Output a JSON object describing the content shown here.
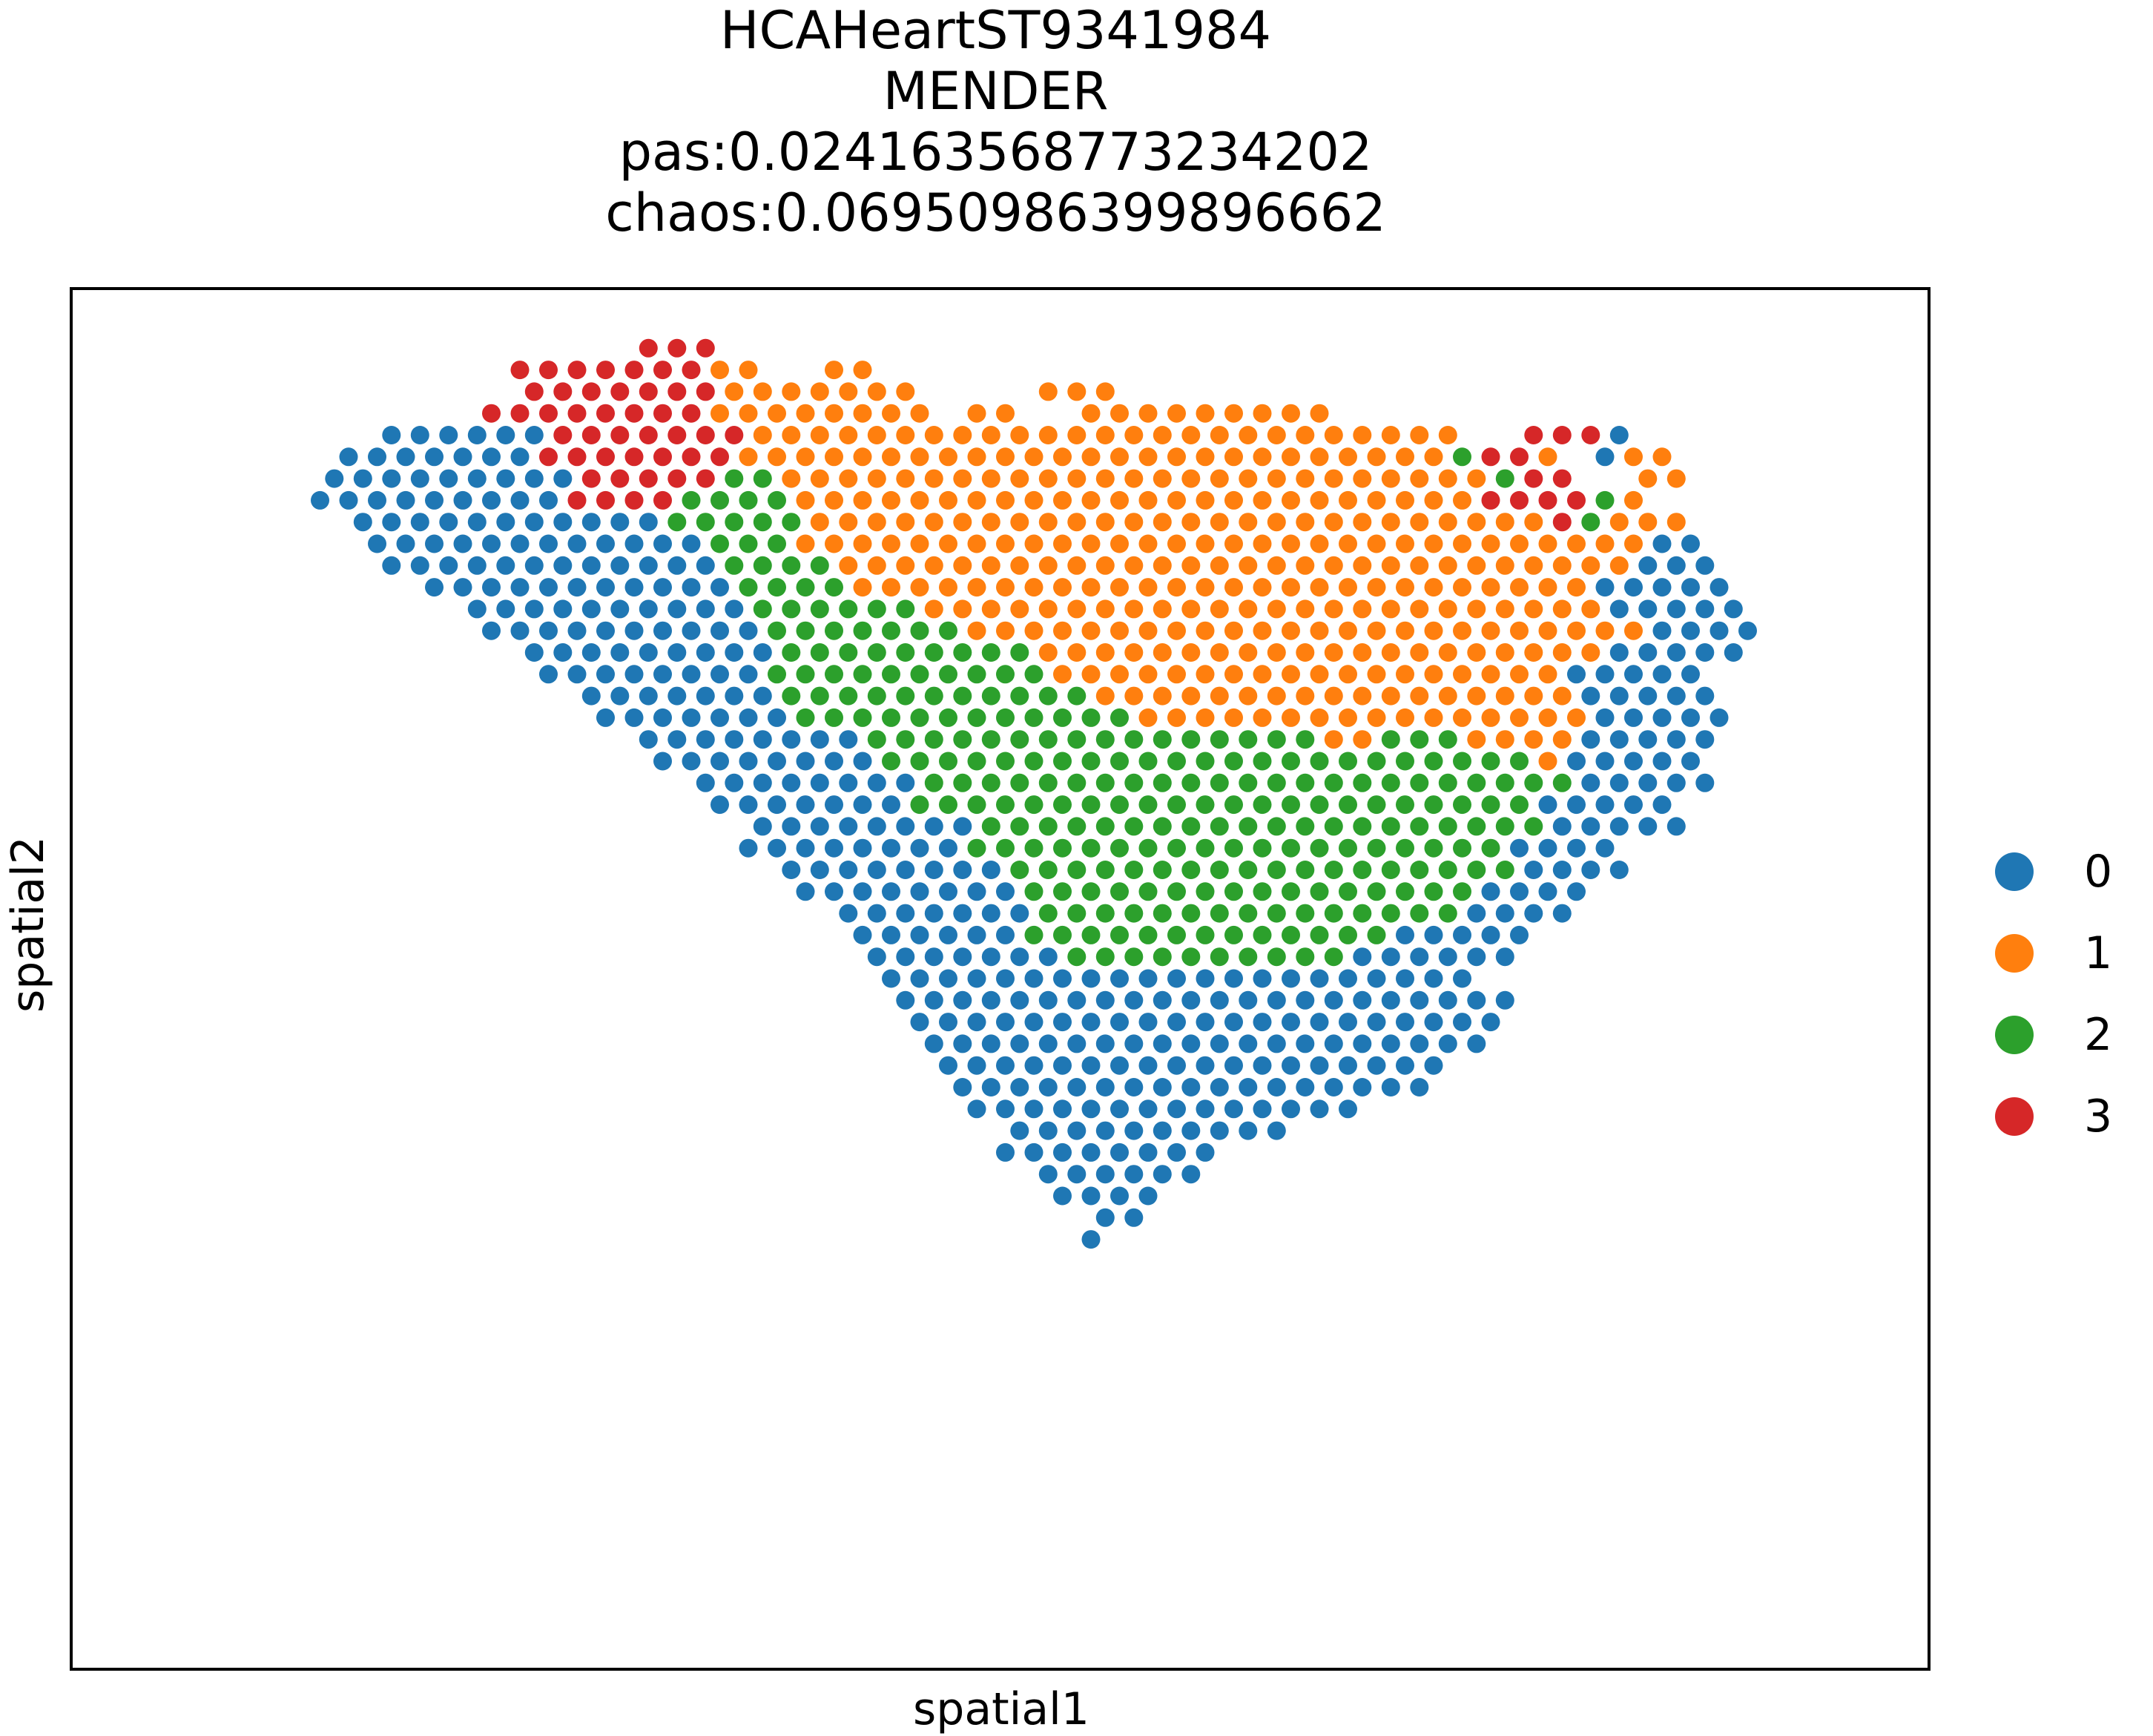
{
  "title": {
    "dataset": "HCAHeartST9341984",
    "method": "MENDER",
    "pas": "pas:0.024163568773234202",
    "chaos": "chaos:0.06950986399896662"
  },
  "colors": {
    "0": "#1f77b4",
    "1": "#ff7f0e",
    "2": "#2ca02c",
    "3": "#d62728"
  },
  "chart_data": {
    "type": "scatter",
    "title": "HCAHeartST9341984 / MENDER / pas:0.024163568773234202 / chaos:0.06950986399896662",
    "xlabel": "spatial1",
    "ylabel": "spatial2",
    "ticks": "none",
    "grid": false,
    "legend_position": "right",
    "series": [
      {
        "name": "0",
        "color": "#1f77b4"
      },
      {
        "name": "1",
        "color": "#ff7f0e"
      },
      {
        "name": "2",
        "color": "#2ca02c"
      },
      {
        "name": "3",
        "color": "#d62728"
      }
    ],
    "spot_grid": {
      "description": "hexagonal Visium-style spot grid; cluster map rows (top to bottom), one character per column position",
      "legend": {
        ".": "no spot",
        "0": "cluster 0",
        "1": "cluster 1",
        "2": "cluster 2",
        "3": "cluster 3"
      },
      "rows": [
        "....................................................",
        "..............333..................................",
        "..........333333311..11...........................",
        "..........33333331111111....111...................",
        ".........3333333311111111.11..111111111...........",
        ".....00000033333331111111111111111111111111..3330..",
        "....0000000333333311111111111111111111111112331.011",
        "...00000000033333221111111111111111111111111233..11",
        "...00000000033332222111111111111111111111111333321.",
        "....00000000000222221111111111111111111111111132111",
        ".....00000000000022211111111111111111111111111111100",
        ".....00000000000022221111111111111111111111111111000",
        ".......0000000000022221111111111111111111111111100000",
        "........000000000022222211111111111111111111111100000",
        ".........000000000022222221111111111111111111111110000",
        "..........0000000002222222221111111111111111111100000",
        "...........00000000222222222211111111111111111100000",
        "............0000000222222222221111111111111111100000",
        ".............0000000222222222222111111111111111100000",
        "..............00000000222222222222222211222111100000",
        "...............0000000022222222222222222222222100000",
        "................000000002222222222222222222222200000",
        ".................0000000222222222222222222222200000",
        "..................000000002222222222222222222200000",
        "..................0000000022222222222222222220000",
        "...................000000002222222222222222220000",
        "....................0000000022222222222222220000",
        ".....................00000002222222222222220000",
        "......................000000222222222222200000",
        "......................00000002222222222000000",
        ".......................000000000000000000000",
        ".......................0000000000000000000000",
        "........................000000000000000000000",
        "........................00000000000000000000",
        ".........................000000000000000000",
        ".........................00000000000000000",
        "..........................00000000000000",
        "...........................0000000000",
        "...........................00000000",
        "............................000000",
        ".............................0000",
        "..............................00",
        "..............................0"
      ]
    }
  },
  "axes": {
    "xlabel": "spatial1",
    "ylabel": "spatial2"
  },
  "legend": {
    "items": [
      {
        "label": "0",
        "color": "#1f77b4"
      },
      {
        "label": "1",
        "color": "#ff7f0e"
      },
      {
        "label": "2",
        "color": "#2ca02c"
      },
      {
        "label": "3",
        "color": "#d62728"
      }
    ]
  }
}
